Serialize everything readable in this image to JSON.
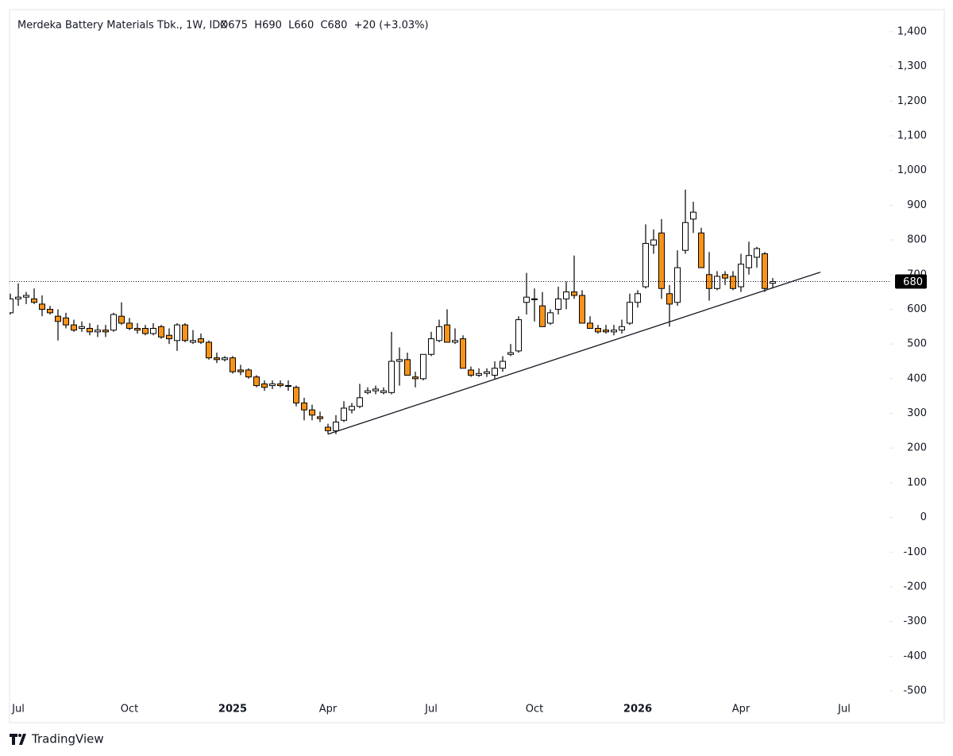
{
  "chart_data": {
    "type": "candlestick",
    "title": "Merdeka Battery Materials Tbk., 1W, IDX",
    "legend": "O675  H690  L660  C680  +20 (+3.03%)",
    "categories": [
      null,
      "Jul",
      null,
      null,
      null,
      null,
      null,
      null,
      null,
      null,
      null,
      null,
      null,
      null,
      null,
      "Oct",
      null,
      null,
      null,
      null,
      null,
      null,
      null,
      null,
      null,
      null,
      null,
      null,
      "2025",
      null,
      null,
      null,
      null,
      null,
      null,
      null,
      null,
      null,
      null,
      null,
      "Apr",
      null,
      null,
      null,
      null,
      null,
      null,
      null,
      null,
      null,
      null,
      null,
      null,
      "Jul",
      null,
      null,
      null,
      null,
      null,
      null,
      null,
      null,
      null,
      null,
      null,
      null,
      "Oct",
      null,
      null,
      null,
      null,
      null,
      null,
      null,
      null,
      null,
      null,
      null,
      null,
      "2026",
      null,
      null,
      null,
      null,
      null,
      null,
      null,
      null,
      null,
      null,
      null,
      null,
      "Apr",
      null,
      null,
      null,
      null,
      null,
      null,
      null,
      null,
      null,
      null,
      null,
      null,
      "Jul",
      null,
      null,
      null,
      null,
      null
    ],
    "open": [
      590,
      630,
      635,
      630,
      615,
      600,
      580,
      575,
      555,
      545,
      545,
      535,
      540,
      540,
      580,
      560,
      545,
      545,
      530,
      550,
      525,
      510,
      555,
      505,
      515,
      505,
      460,
      455,
      460,
      425,
      425,
      405,
      385,
      380,
      385,
      380,
      375,
      330,
      310,
      290,
      260,
      250,
      280,
      310,
      320,
      360,
      365,
      360,
      360,
      450,
      455,
      405,
      400,
      470,
      510,
      555,
      505,
      515,
      425,
      410,
      415,
      410,
      430,
      470,
      480,
      620,
      630,
      610,
      560,
      600,
      630,
      650,
      640,
      560,
      545,
      540,
      535,
      540,
      560,
      620,
      665,
      785,
      820,
      645,
      620,
      770,
      860,
      820,
      700,
      660,
      700,
      695,
      665,
      720,
      750,
      760,
      675,
      null,
      null,
      null,
      null,
      null,
      null,
      null,
      null,
      null,
      null,
      null,
      null,
      null,
      null
    ],
    "high": [
      645,
      675,
      650,
      660,
      640,
      610,
      600,
      590,
      570,
      565,
      560,
      555,
      555,
      590,
      620,
      575,
      560,
      555,
      560,
      555,
      545,
      560,
      560,
      540,
      530,
      510,
      475,
      465,
      465,
      440,
      430,
      410,
      395,
      395,
      395,
      395,
      380,
      345,
      325,
      305,
      270,
      295,
      335,
      330,
      385,
      375,
      380,
      375,
      535,
      490,
      475,
      420,
      465,
      535,
      570,
      600,
      545,
      525,
      435,
      430,
      430,
      450,
      465,
      500,
      580,
      705,
      660,
      650,
      600,
      665,
      680,
      755,
      655,
      580,
      555,
      555,
      555,
      570,
      645,
      655,
      845,
      830,
      860,
      670,
      770,
      945,
      910,
      835,
      765,
      710,
      710,
      710,
      760,
      795,
      780,
      765,
      690,
      null,
      null,
      null,
      null,
      null,
      null,
      null,
      null,
      null,
      null,
      null,
      null,
      null,
      null
    ],
    "low": [
      585,
      610,
      615,
      615,
      580,
      585,
      510,
      545,
      535,
      535,
      525,
      520,
      520,
      535,
      555,
      540,
      530,
      525,
      525,
      515,
      500,
      480,
      505,
      500,
      500,
      455,
      445,
      450,
      415,
      410,
      400,
      375,
      365,
      370,
      375,
      365,
      320,
      280,
      280,
      275,
      240,
      240,
      275,
      300,
      315,
      355,
      355,
      355,
      355,
      380,
      410,
      375,
      395,
      465,
      505,
      505,
      500,
      430,
      405,
      405,
      405,
      400,
      420,
      465,
      475,
      585,
      565,
      550,
      555,
      585,
      600,
      630,
      560,
      545,
      530,
      530,
      525,
      530,
      555,
      605,
      660,
      760,
      630,
      550,
      610,
      760,
      820,
      720,
      625,
      655,
      670,
      655,
      650,
      700,
      720,
      650,
      660,
      null,
      null,
      null,
      null,
      null,
      null,
      null,
      null,
      null,
      null,
      null,
      null,
      null,
      null
    ],
    "close": [
      630,
      635,
      640,
      620,
      600,
      590,
      565,
      555,
      540,
      550,
      535,
      540,
      535,
      585,
      560,
      545,
      540,
      530,
      545,
      520,
      515,
      555,
      510,
      510,
      505,
      460,
      455,
      460,
      420,
      420,
      405,
      380,
      375,
      385,
      380,
      380,
      330,
      310,
      295,
      285,
      250,
      275,
      315,
      320,
      345,
      365,
      370,
      365,
      450,
      455,
      410,
      400,
      470,
      515,
      550,
      505,
      510,
      430,
      410,
      415,
      420,
      430,
      450,
      475,
      570,
      635,
      630,
      550,
      590,
      630,
      650,
      640,
      560,
      545,
      535,
      535,
      540,
      550,
      620,
      645,
      790,
      800,
      660,
      615,
      720,
      850,
      880,
      720,
      660,
      695,
      690,
      660,
      730,
      755,
      775,
      660,
      680,
      null,
      null,
      null,
      null,
      null,
      null,
      null,
      null,
      null,
      null,
      null,
      null,
      null,
      null
    ],
    "up_color": "#ffffff",
    "down_color": "#f7931a",
    "outline_color": "#000000",
    "ylim": [
      -500,
      1400
    ],
    "yticks": [
      {
        "value": 1400,
        "label": "1,400"
      },
      {
        "value": 1300,
        "label": "1,300"
      },
      {
        "value": 1200,
        "label": "1,200"
      },
      {
        "value": 1100,
        "label": "1,100"
      },
      {
        "value": 1000,
        "label": "1,000"
      },
      900,
      800,
      700,
      600,
      500,
      400,
      300,
      200,
      100,
      0,
      -100,
      -200,
      -300,
      -400,
      -500
    ],
    "last_price": 680,
    "trendline": {
      "start": [
        40,
        240
      ],
      "end": [
        102,
        707
      ]
    },
    "grid": false,
    "brand": "TradingView"
  }
}
